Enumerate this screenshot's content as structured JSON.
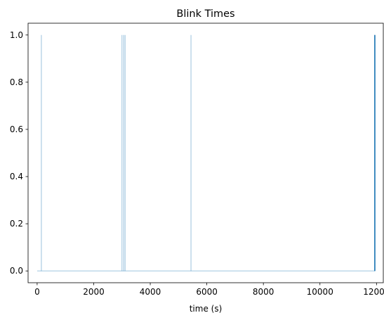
{
  "chart_data": {
    "type": "line",
    "title": "Blink Times",
    "xlabel": "time (s)",
    "ylabel": "",
    "xlim": [
      -320,
      12240
    ],
    "ylim": [
      -0.05,
      1.05
    ],
    "xticks": [
      0,
      2000,
      4000,
      6000,
      8000,
      10000,
      12000
    ],
    "xtick_labels": [
      "0",
      "2000",
      "4000",
      "6000",
      "8000",
      "10000",
      "12000"
    ],
    "yticks": [
      0.0,
      0.2,
      0.4,
      0.6,
      0.8,
      1.0
    ],
    "ytick_labels": [
      "0.0",
      "0.2",
      "0.4",
      "0.6",
      "0.8",
      "1.0"
    ],
    "grid": false,
    "series": [
      {
        "color": "#1f77b4",
        "baseline_x": [
          0,
          11950
        ],
        "spikes": [
          {
            "x": 150,
            "y": 1.0
          },
          {
            "x": 3000,
            "y": 1.0
          },
          {
            "x": 3060,
            "y": 1.0
          },
          {
            "x": 3110,
            "y": 1.0
          },
          {
            "x": 5440,
            "y": 1.0
          },
          {
            "x": 11930,
            "y": 1.0
          },
          {
            "x": 11940,
            "y": 1.0
          },
          {
            "x": 11950,
            "y": 1.0
          }
        ]
      }
    ]
  }
}
